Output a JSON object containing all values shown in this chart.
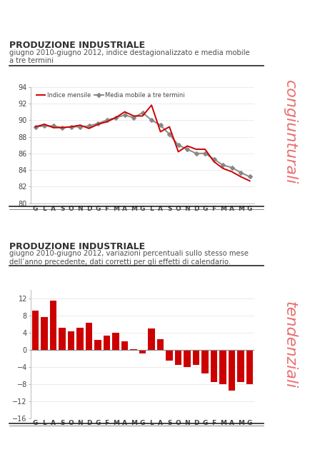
{
  "title1": "PRODUZIONE INDUSTRIALE",
  "subtitle1": "giugno 2010-giugno 2012, indice destagionalizzato e media mobile\na tre termini",
  "title2": "PRODUZIONE INDUSTRIALE",
  "subtitle2": "giugno 2010-giugno 2012, variazioni percentuali sullo stesso mese\ndell’anno precedente, dati corretti per gli effetti di calendario.",
  "xtick_labels": [
    "G",
    "L",
    "A",
    "S",
    "O",
    "N",
    "D",
    "G",
    "F",
    "M",
    "A",
    "M",
    "G",
    "L",
    "A",
    "S",
    "O",
    "N",
    "D",
    "G",
    "F",
    "M",
    "A",
    "M",
    "G"
  ],
  "line_indice": [
    89.2,
    89.5,
    89.1,
    89.1,
    89.2,
    89.4,
    89.0,
    89.5,
    89.8,
    90.3,
    91.0,
    90.5,
    90.5,
    91.8,
    88.6,
    89.2,
    86.2,
    86.9,
    86.5,
    86.5,
    85.0,
    84.2,
    83.8,
    83.2,
    82.7
  ],
  "line_media": [
    89.2,
    89.3,
    89.3,
    89.1,
    89.2,
    89.2,
    89.3,
    89.6,
    90.0,
    90.3,
    90.6,
    90.3,
    90.9,
    90.0,
    89.4,
    88.3,
    87.0,
    86.5,
    86.0,
    86.0,
    85.3,
    84.6,
    84.3,
    83.7,
    83.2
  ],
  "bar_values": [
    9.2,
    7.7,
    11.6,
    5.2,
    4.3,
    5.2,
    6.4,
    2.3,
    3.4,
    4.0,
    2.0,
    0.2,
    -0.8,
    5.0,
    2.5,
    -2.5,
    -3.5,
    -4.0,
    -3.5,
    -5.5,
    -7.5,
    -8.0,
    -9.5,
    -7.5,
    -8.0
  ],
  "ylim1": [
    80,
    94
  ],
  "yticks1": [
    80,
    82,
    84,
    86,
    88,
    90,
    92,
    94
  ],
  "ylim2": [
    -16,
    14
  ],
  "yticks2": [
    -16,
    -12,
    -8,
    -4,
    0,
    4,
    8,
    12
  ],
  "line_color": "#cc0000",
  "media_color": "#888888",
  "bar_color": "#cc0000",
  "bg_color": "#ffffff",
  "title_color": "#303030",
  "subtitle_color": "#505050",
  "watermark1": "congiunturali",
  "watermark2": "tendenziali",
  "watermark_color": "#e87070"
}
